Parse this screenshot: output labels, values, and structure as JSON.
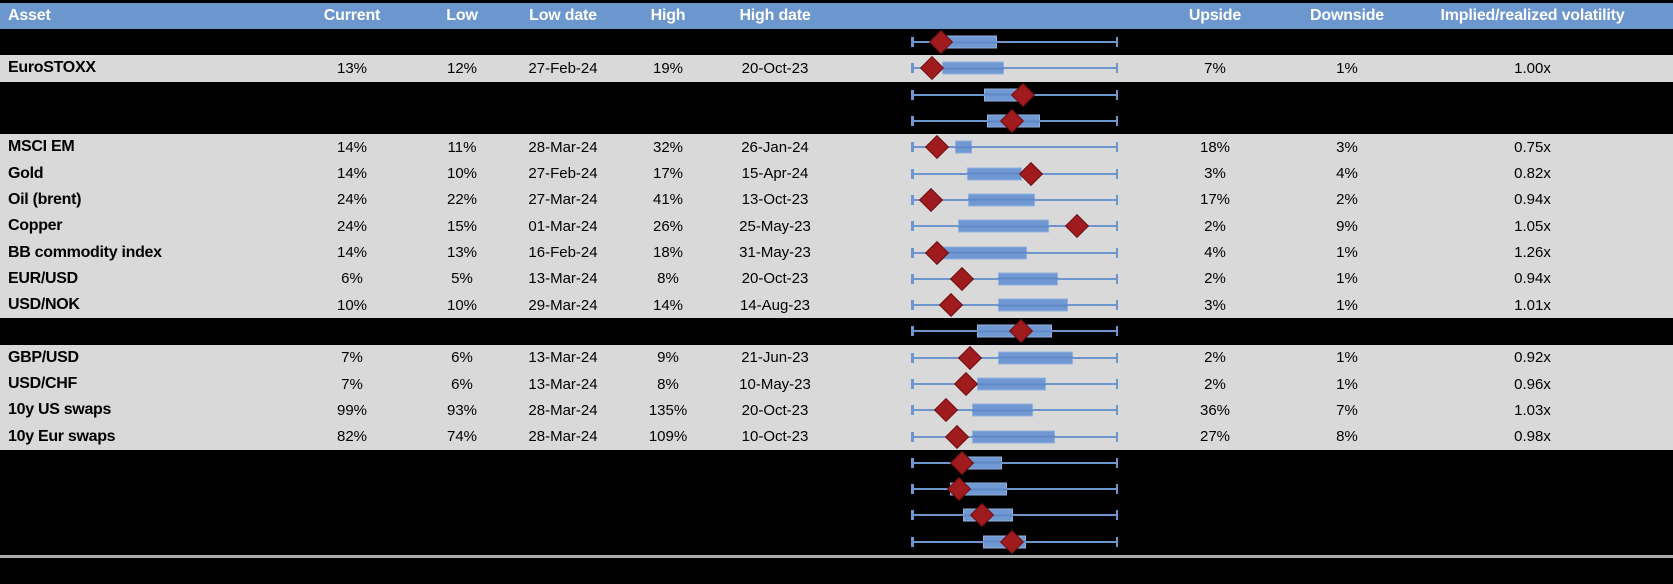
{
  "colors": {
    "header_bg": "#6b96ce",
    "header_text": "#ffffff",
    "row_gray": "#d9d9d9",
    "row_black": "#000000",
    "box_fill": "#7098d2",
    "box_border": "#94b2de",
    "whisker_blue": "#6d96cf",
    "whisker_over_box": "#5f88c5",
    "diamond_red": "#a01b1e",
    "diamond_border": "#6e1013",
    "divider_gray": "#ababab",
    "text": "#000000"
  },
  "chart_data": {
    "type": "table",
    "title": "Asset implied volatility table with embedded normalized box-whisker plots",
    "plot_note": "Each row has a horizontal box-whisker plot normalized to the row's low-high range (whisker spans full range 0..1); blue box marks the typical range; dark-red diamond marks the current level as a fraction of the low-high span.",
    "columns": [
      {
        "key": "asset",
        "label": "Asset"
      },
      {
        "key": "current",
        "label": "Current"
      },
      {
        "key": "low",
        "label": "Low"
      },
      {
        "key": "lowdate",
        "label": "Low date"
      },
      {
        "key": "high",
        "label": "High"
      },
      {
        "key": "highdate",
        "label": "High date"
      },
      {
        "key": "chart",
        "label": ""
      },
      {
        "key": "upside",
        "label": "Upside"
      },
      {
        "key": "downside",
        "label": "Downside"
      },
      {
        "key": "implied",
        "label": "Implied/realized volatility"
      }
    ],
    "rows": [
      {
        "kind": "plot-only",
        "plot": {
          "diamond": 0.141,
          "box": [
            0.155,
            0.413
          ]
        }
      },
      {
        "kind": "data",
        "asset": "EuroSTOXX",
        "current": "13%",
        "low": "12%",
        "lowdate": "27-Feb-24",
        "high": "19%",
        "highdate": "20-Oct-23",
        "upside": "7%",
        "downside": "1%",
        "implied": "1.00x",
        "plot": {
          "diamond": 0.097,
          "box": [
            0.146,
            0.447
          ]
        }
      },
      {
        "kind": "plot-only",
        "plot": {
          "diamond": 0.539,
          "box": [
            0.35,
            0.568
          ]
        }
      },
      {
        "kind": "plot-only",
        "plot": {
          "diamond": 0.486,
          "box": [
            0.364,
            0.621
          ]
        }
      },
      {
        "kind": "data",
        "asset": "MSCI EM",
        "current": "14%",
        "low": "11%",
        "lowdate": "28-Mar-24",
        "high": "32%",
        "highdate": "26-Jan-24",
        "upside": "18%",
        "downside": "3%",
        "implied": "0.75x",
        "plot": {
          "diamond": 0.121,
          "box": [
            0.209,
            0.291
          ]
        }
      },
      {
        "kind": "data",
        "asset": "Gold",
        "current": "14%",
        "low": "10%",
        "lowdate": "27-Feb-24",
        "high": "17%",
        "highdate": "15-Apr-24",
        "upside": "3%",
        "downside": "4%",
        "implied": "0.82x",
        "plot": {
          "diamond": 0.576,
          "box": [
            0.266,
            0.536
          ]
        }
      },
      {
        "kind": "data",
        "asset": "Oil (brent)",
        "current": "24%",
        "low": "22%",
        "lowdate": "27-Mar-24",
        "high": "41%",
        "highdate": "13-Oct-23",
        "upside": "17%",
        "downside": "2%",
        "implied": "0.94x",
        "plot": {
          "diamond": 0.09,
          "box": [
            0.27,
            0.597
          ]
        }
      },
      {
        "kind": "data",
        "asset": "Copper",
        "current": "24%",
        "low": "15%",
        "lowdate": "01-Mar-24",
        "high": "26%",
        "highdate": "25-May-23",
        "upside": "2%",
        "downside": "9%",
        "implied": "1.05x",
        "plot": {
          "diamond": 0.8,
          "box": [
            0.225,
            0.665
          ]
        }
      },
      {
        "kind": "data",
        "asset": "BB commodity index",
        "current": "14%",
        "low": "13%",
        "lowdate": "16-Feb-24",
        "high": "18%",
        "highdate": "31-May-23",
        "upside": "4%",
        "downside": "1%",
        "implied": "1.26x",
        "plot": {
          "diamond": 0.122,
          "box": [
            0.131,
            0.558
          ]
        }
      },
      {
        "kind": "data",
        "asset": "EUR/USD",
        "current": "6%",
        "low": "5%",
        "lowdate": "13-Mar-24",
        "high": "8%",
        "highdate": "20-Oct-23",
        "upside": "2%",
        "downside": "1%",
        "implied": "0.94x",
        "plot": {
          "diamond": 0.244,
          "box": [
            0.419,
            0.71
          ]
        }
      },
      {
        "kind": "data",
        "asset": "USD/NOK",
        "current": "10%",
        "low": "10%",
        "lowdate": "29-Mar-24",
        "high": "14%",
        "highdate": "14-Aug-23",
        "upside": "3%",
        "downside": "1%",
        "implied": "1.01x",
        "plot": {
          "diamond": 0.189,
          "box": [
            0.419,
            0.759
          ]
        }
      },
      {
        "kind": "plot-only",
        "plot": {
          "diamond": 0.528,
          "box": [
            0.314,
            0.678
          ]
        }
      },
      {
        "kind": "data",
        "asset": "GBP/USD",
        "current": "7%",
        "low": "6%",
        "lowdate": "13-Mar-24",
        "high": "9%",
        "highdate": "21-Jun-23",
        "upside": "2%",
        "downside": "1%",
        "implied": "0.92x",
        "plot": {
          "diamond": 0.28,
          "box": [
            0.419,
            0.783
          ]
        }
      },
      {
        "kind": "data",
        "asset": "USD/CHF",
        "current": "7%",
        "low": "6%",
        "lowdate": "13-Mar-24",
        "high": "8%",
        "highdate": "10-May-23",
        "upside": "2%",
        "downside": "1%",
        "implied": "0.96x",
        "plot": {
          "diamond": 0.26,
          "box": [
            0.314,
            0.65
          ]
        }
      },
      {
        "kind": "data",
        "asset": "10y US swaps",
        "current": "99%",
        "low": "93%",
        "lowdate": "28-Mar-24",
        "high": "135%",
        "highdate": "20-Oct-23",
        "upside": "36%",
        "downside": "7%",
        "implied": "1.03x",
        "plot": {
          "diamond": 0.164,
          "box": [
            0.29,
            0.589
          ]
        }
      },
      {
        "kind": "data",
        "asset": "10y Eur swaps",
        "current": "82%",
        "low": "74%",
        "lowdate": "28-Mar-24",
        "high": "109%",
        "highdate": "10-Oct-23",
        "upside": "27%",
        "downside": "8%",
        "implied": "0.98x",
        "plot": {
          "diamond": 0.218,
          "box": [
            0.291,
            0.694
          ]
        }
      },
      {
        "kind": "plot-only",
        "plot": {
          "diamond": 0.244,
          "box": [
            0.273,
            0.435
          ]
        }
      },
      {
        "kind": "plot-only",
        "plot": {
          "diamond": 0.228,
          "box": [
            0.184,
            0.463
          ]
        }
      },
      {
        "kind": "plot-only",
        "plot": {
          "diamond": 0.341,
          "box": [
            0.246,
            0.492
          ]
        }
      },
      {
        "kind": "plot-only",
        "plot": {
          "diamond": 0.487,
          "box": [
            0.343,
            0.553
          ]
        }
      }
    ]
  }
}
